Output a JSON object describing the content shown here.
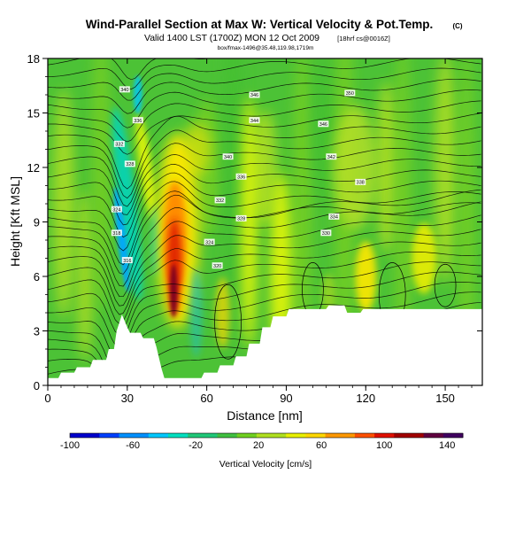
{
  "chart_data": {
    "type": "heatmap",
    "title": "Wind-Parallel Section at Max W: Vertical Velocity & Pot.Temp.",
    "title_mark": "(C)",
    "subtitle_line1": "Valid 1400 LST (1700Z) MON 12 Oct 2009",
    "subtitle_line1_note": "[18hrf cs@0016Z]",
    "subtitle_line2": "box/fmax-1496@35.48,119.98,1719m",
    "xlabel": "Distance [nm]",
    "ylabel": "Height [Kft MSL]",
    "xlim": [
      0,
      164
    ],
    "ylim": [
      0,
      18
    ],
    "x_ticks": [
      "0",
      "30",
      "60",
      "90",
      "120",
      "150"
    ],
    "y_ticks": [
      "0",
      "3",
      "6",
      "9",
      "12",
      "15",
      "18"
    ],
    "x_tick_values": [
      0,
      30,
      60,
      90,
      120,
      150
    ],
    "y_tick_values": [
      0,
      3,
      6,
      9,
      12,
      15,
      18
    ],
    "colorbar": {
      "label": "Vertical Velocity [cm/s]",
      "range": [
        -100,
        150
      ],
      "tick_labels": [
        "-100",
        "-60",
        "-20",
        "20",
        "60",
        "100",
        "140"
      ],
      "tick_values": [
        -100,
        -60,
        -20,
        20,
        60,
        100,
        140
      ],
      "colors": [
        "#0000cc",
        "#0055ff",
        "#00a8ff",
        "#00d8c8",
        "#22c870",
        "#44c030",
        "#7ad020",
        "#b8e020",
        "#ffff00",
        "#ffc000",
        "#ff8800",
        "#ff3300",
        "#cc0000",
        "#880000",
        "#5a0050"
      ]
    },
    "terrain_kft": [
      [
        0,
        0.4
      ],
      [
        4,
        0.4
      ],
      [
        5,
        0.7
      ],
      [
        10,
        0.7
      ],
      [
        11,
        1.0
      ],
      [
        16,
        1.0
      ],
      [
        17,
        1.4
      ],
      [
        22,
        1.4
      ],
      [
        23,
        2.0
      ],
      [
        25,
        2.0
      ],
      [
        26,
        3.0
      ],
      [
        28,
        3.9
      ],
      [
        30,
        3.2
      ],
      [
        31,
        2.9
      ],
      [
        35,
        2.9
      ],
      [
        36,
        2.6
      ],
      [
        40,
        2.6
      ],
      [
        41,
        2.1
      ],
      [
        42,
        1.5
      ],
      [
        43,
        0.9
      ],
      [
        44,
        0.4
      ],
      [
        58,
        0.4
      ],
      [
        59,
        0.7
      ],
      [
        64,
        0.7
      ],
      [
        65,
        1.1
      ],
      [
        70,
        1.1
      ],
      [
        71,
        1.6
      ],
      [
        75,
        1.6
      ],
      [
        76,
        2.3
      ],
      [
        80,
        2.3
      ],
      [
        81,
        3.2
      ],
      [
        84,
        3.2
      ],
      [
        85,
        3.8
      ],
      [
        90,
        3.8
      ],
      [
        91,
        4.2
      ],
      [
        105,
        4.2
      ],
      [
        106,
        4.4
      ],
      [
        112,
        4.4
      ],
      [
        113,
        4.0
      ],
      [
        118,
        4.0
      ],
      [
        119,
        4.2
      ],
      [
        164,
        4.2
      ]
    ],
    "updrafts": [
      {
        "x": 48,
        "y": 6,
        "peak_cm_s": 145
      },
      {
        "x": 45,
        "y": 10,
        "peak_cm_s": 60
      },
      {
        "x": 30,
        "y": 14,
        "peak_cm_s": 40
      },
      {
        "x": 120,
        "y": 6,
        "peak_cm_s": 50
      },
      {
        "x": 140,
        "y": 5,
        "peak_cm_s": 40
      }
    ],
    "downdrafts": [
      {
        "x": 27,
        "y": 8,
        "min_cm_s": -100
      },
      {
        "x": 42,
        "y": 7,
        "min_cm_s": -30
      }
    ],
    "isentrope_labels": [
      {
        "x": 29,
        "y": 16.3,
        "text": "340"
      },
      {
        "x": 34,
        "y": 14.6,
        "text": "336"
      },
      {
        "x": 27,
        "y": 13.3,
        "text": "332"
      },
      {
        "x": 31,
        "y": 12.2,
        "text": "328"
      },
      {
        "x": 26,
        "y": 9.7,
        "text": "324"
      },
      {
        "x": 26,
        "y": 8.4,
        "text": "318"
      },
      {
        "x": 30,
        "y": 6.9,
        "text": "316"
      },
      {
        "x": 78,
        "y": 16.0,
        "text": "346"
      },
      {
        "x": 78,
        "y": 14.6,
        "text": "344"
      },
      {
        "x": 68,
        "y": 12.6,
        "text": "340"
      },
      {
        "x": 73,
        "y": 11.5,
        "text": "336"
      },
      {
        "x": 65,
        "y": 10.2,
        "text": "332"
      },
      {
        "x": 73,
        "y": 9.2,
        "text": "328"
      },
      {
        "x": 61,
        "y": 7.9,
        "text": "324"
      },
      {
        "x": 64,
        "y": 6.6,
        "text": "320"
      },
      {
        "x": 114,
        "y": 16.1,
        "text": "350"
      },
      {
        "x": 104,
        "y": 14.4,
        "text": "346"
      },
      {
        "x": 107,
        "y": 12.6,
        "text": "342"
      },
      {
        "x": 118,
        "y": 11.2,
        "text": "338"
      },
      {
        "x": 108,
        "y": 9.3,
        "text": "334"
      },
      {
        "x": 105,
        "y": 8.4,
        "text": "330"
      }
    ]
  }
}
